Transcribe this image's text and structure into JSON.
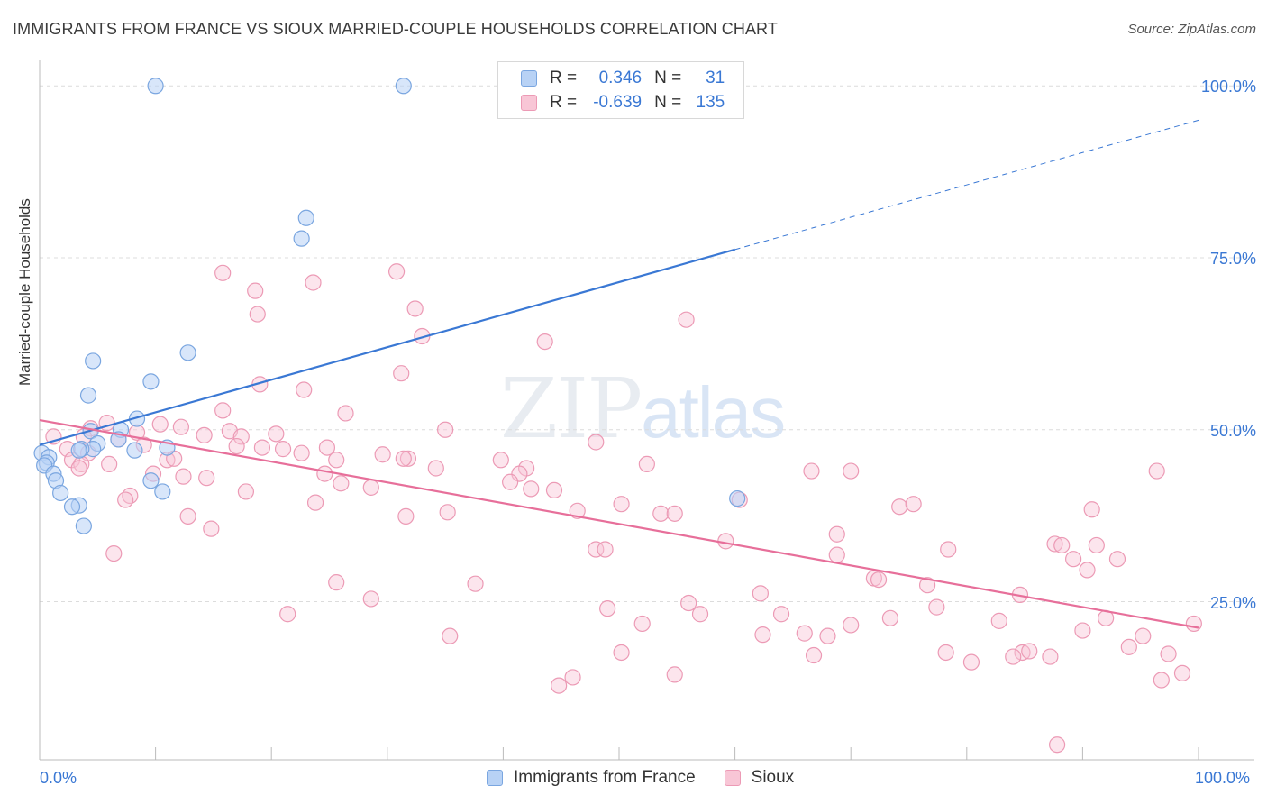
{
  "title": "IMMIGRANTS FROM FRANCE VS SIOUX MARRIED-COUPLE HOUSEHOLDS CORRELATION CHART",
  "source": "Source: ZipAtlas.com",
  "watermark": {
    "zip": "ZIP",
    "atlas": "atlas"
  },
  "legend": {
    "r_label": "R =",
    "n_label": "N =",
    "series": [
      {
        "name": "Immigrants from France",
        "r": "0.346",
        "n": "31",
        "fill": "#b8d2f5",
        "stroke": "#7aa6e0"
      },
      {
        "name": "Sioux",
        "r": "-0.639",
        "n": "135",
        "fill": "#f8c6d6",
        "stroke": "#ec9ab5"
      }
    ]
  },
  "chart_data": {
    "type": "scatter",
    "title": "IMMIGRANTS FROM FRANCE VS SIOUX MARRIED-COUPLE HOUSEHOLDS CORRELATION CHART",
    "xlabel": "",
    "ylabel": "Married-couple Households",
    "xlim": [
      0,
      100
    ],
    "ylim": [
      2,
      102
    ],
    "x_tick_labels": [
      "0.0%",
      "100.0%"
    ],
    "y_tick_labels": [
      {
        "value": 25,
        "label": "25.0%"
      },
      {
        "value": 50,
        "label": "50.0%"
      },
      {
        "value": 75,
        "label": "75.0%"
      },
      {
        "value": 100,
        "label": "100.0%"
      }
    ],
    "series": [
      {
        "name": "Immigrants from France",
        "color": "#3a78d4",
        "trend": {
          "x0": 0,
          "y0": 47.8,
          "x1": 60,
          "y1": 76.2,
          "dashed_to_x": 100,
          "dashed_to_y": 95.0
        },
        "points": [
          [
            10,
            100
          ],
          [
            31.4,
            100
          ],
          [
            23,
            80.8
          ],
          [
            22.6,
            77.8
          ],
          [
            12.8,
            61.2
          ],
          [
            4.6,
            60
          ],
          [
            9.6,
            57
          ],
          [
            4.2,
            55
          ],
          [
            8.4,
            51.6
          ],
          [
            7,
            50
          ],
          [
            4.4,
            49.8
          ],
          [
            6.8,
            48.6
          ],
          [
            5,
            48
          ],
          [
            4.6,
            47.2
          ],
          [
            3.6,
            47.2
          ],
          [
            3.4,
            47
          ],
          [
            8.2,
            47
          ],
          [
            11,
            47.4
          ],
          [
            0.2,
            46.6
          ],
          [
            0.8,
            46
          ],
          [
            0.6,
            45.2
          ],
          [
            0.4,
            44.8
          ],
          [
            1.2,
            43.6
          ],
          [
            1.4,
            42.6
          ],
          [
            9.6,
            42.6
          ],
          [
            10.6,
            41
          ],
          [
            1.8,
            40.8
          ],
          [
            3.4,
            39
          ],
          [
            2.8,
            38.8
          ],
          [
            3.8,
            36
          ],
          [
            60.2,
            40
          ]
        ]
      },
      {
        "name": "Sioux",
        "color": "#e76f9a",
        "trend": {
          "x0": 0,
          "y0": 51.4,
          "x1": 100,
          "y1": 21.2
        },
        "points": [
          [
            15.8,
            72.8
          ],
          [
            30.8,
            73
          ],
          [
            23.6,
            71.4
          ],
          [
            18.6,
            70.2
          ],
          [
            32.4,
            67.6
          ],
          [
            18.8,
            66.8
          ],
          [
            55.8,
            66
          ],
          [
            33,
            63.6
          ],
          [
            43.6,
            62.8
          ],
          [
            31.2,
            58.2
          ],
          [
            19,
            56.6
          ],
          [
            22.8,
            55.8
          ],
          [
            15.8,
            52.8
          ],
          [
            26.4,
            52.4
          ],
          [
            5.8,
            51
          ],
          [
            10.4,
            50.8
          ],
          [
            12.2,
            50.4
          ],
          [
            4.4,
            50.2
          ],
          [
            35,
            50
          ],
          [
            16.4,
            49.8
          ],
          [
            14.2,
            49.2
          ],
          [
            17.4,
            49
          ],
          [
            20.4,
            49.4
          ],
          [
            8.4,
            49.6
          ],
          [
            1.2,
            49
          ],
          [
            3.8,
            49
          ],
          [
            6.8,
            48.6
          ],
          [
            48,
            48.2
          ],
          [
            2.4,
            47.2
          ],
          [
            9,
            47.8
          ],
          [
            17,
            47.6
          ],
          [
            19.2,
            47.4
          ],
          [
            21,
            47.2
          ],
          [
            24.8,
            47.4
          ],
          [
            4.2,
            46.6
          ],
          [
            29.6,
            46.4
          ],
          [
            22.6,
            46.6
          ],
          [
            2.8,
            45.6
          ],
          [
            11,
            45.6
          ],
          [
            11.6,
            45.8
          ],
          [
            3.6,
            45
          ],
          [
            25.6,
            45.6
          ],
          [
            31.8,
            45.8
          ],
          [
            31.4,
            45.8
          ],
          [
            39.8,
            45.6
          ],
          [
            12.4,
            43.2
          ],
          [
            6,
            45
          ],
          [
            9.8,
            43.6
          ],
          [
            3.4,
            44.4
          ],
          [
            34.2,
            44.4
          ],
          [
            42,
            44.4
          ],
          [
            66.6,
            44
          ],
          [
            70,
            44
          ],
          [
            52.4,
            45
          ],
          [
            41.4,
            43.6
          ],
          [
            24.6,
            43.6
          ],
          [
            14.4,
            43
          ],
          [
            26,
            42.2
          ],
          [
            28.6,
            41.6
          ],
          [
            42.4,
            41.4
          ],
          [
            40.6,
            42.4
          ],
          [
            44.4,
            41.2
          ],
          [
            17.8,
            41
          ],
          [
            7.8,
            40.4
          ],
          [
            7.4,
            39.8
          ],
          [
            60.4,
            39.8
          ],
          [
            23.8,
            39.4
          ],
          [
            50.2,
            39.2
          ],
          [
            74.2,
            38.8
          ],
          [
            75.4,
            39.2
          ],
          [
            35.2,
            38
          ],
          [
            46.4,
            38.2
          ],
          [
            53.6,
            37.8
          ],
          [
            54.8,
            37.8
          ],
          [
            31.6,
            37.4
          ],
          [
            12.8,
            37.4
          ],
          [
            14.8,
            35.6
          ],
          [
            68.8,
            34.8
          ],
          [
            90.8,
            38.4
          ],
          [
            59.2,
            33.8
          ],
          [
            87.6,
            33.4
          ],
          [
            88.2,
            33.2
          ],
          [
            91.2,
            33.2
          ],
          [
            48,
            32.6
          ],
          [
            48.8,
            32.6
          ],
          [
            6.4,
            32
          ],
          [
            68.8,
            31.8
          ],
          [
            93,
            31.2
          ],
          [
            78.4,
            32.6
          ],
          [
            89.2,
            31.2
          ],
          [
            90.4,
            29.6
          ],
          [
            72,
            28.4
          ],
          [
            72.4,
            28.2
          ],
          [
            25.6,
            27.8
          ],
          [
            37.6,
            27.6
          ],
          [
            76.6,
            27.4
          ],
          [
            28.6,
            25.4
          ],
          [
            62.2,
            26.2
          ],
          [
            84.6,
            26
          ],
          [
            56,
            24.8
          ],
          [
            49,
            24
          ],
          [
            77.4,
            24.2
          ],
          [
            21.4,
            23.2
          ],
          [
            57,
            23.2
          ],
          [
            64,
            23.2
          ],
          [
            73.4,
            22.6
          ],
          [
            92,
            22.6
          ],
          [
            82.8,
            22.2
          ],
          [
            70,
            21.6
          ],
          [
            99.6,
            21.8
          ],
          [
            35.4,
            20
          ],
          [
            66,
            20.4
          ],
          [
            68,
            20
          ],
          [
            62.4,
            20.2
          ],
          [
            90,
            20.8
          ],
          [
            94,
            18.4
          ],
          [
            84.8,
            17.6
          ],
          [
            85.4,
            17.8
          ],
          [
            84,
            17
          ],
          [
            87.2,
            17
          ],
          [
            97.4,
            17.4
          ],
          [
            66.8,
            17.2
          ],
          [
            50.2,
            17.6
          ],
          [
            80.4,
            16.2
          ],
          [
            46,
            14
          ],
          [
            54.8,
            14.4
          ],
          [
            44.8,
            12.8
          ],
          [
            78.2,
            17.6
          ],
          [
            95.2,
            20
          ],
          [
            98.6,
            14.6
          ],
          [
            96.8,
            13.6
          ],
          [
            87.8,
            4.2
          ],
          [
            96.4,
            44
          ],
          [
            52,
            21.8
          ]
        ]
      }
    ]
  }
}
